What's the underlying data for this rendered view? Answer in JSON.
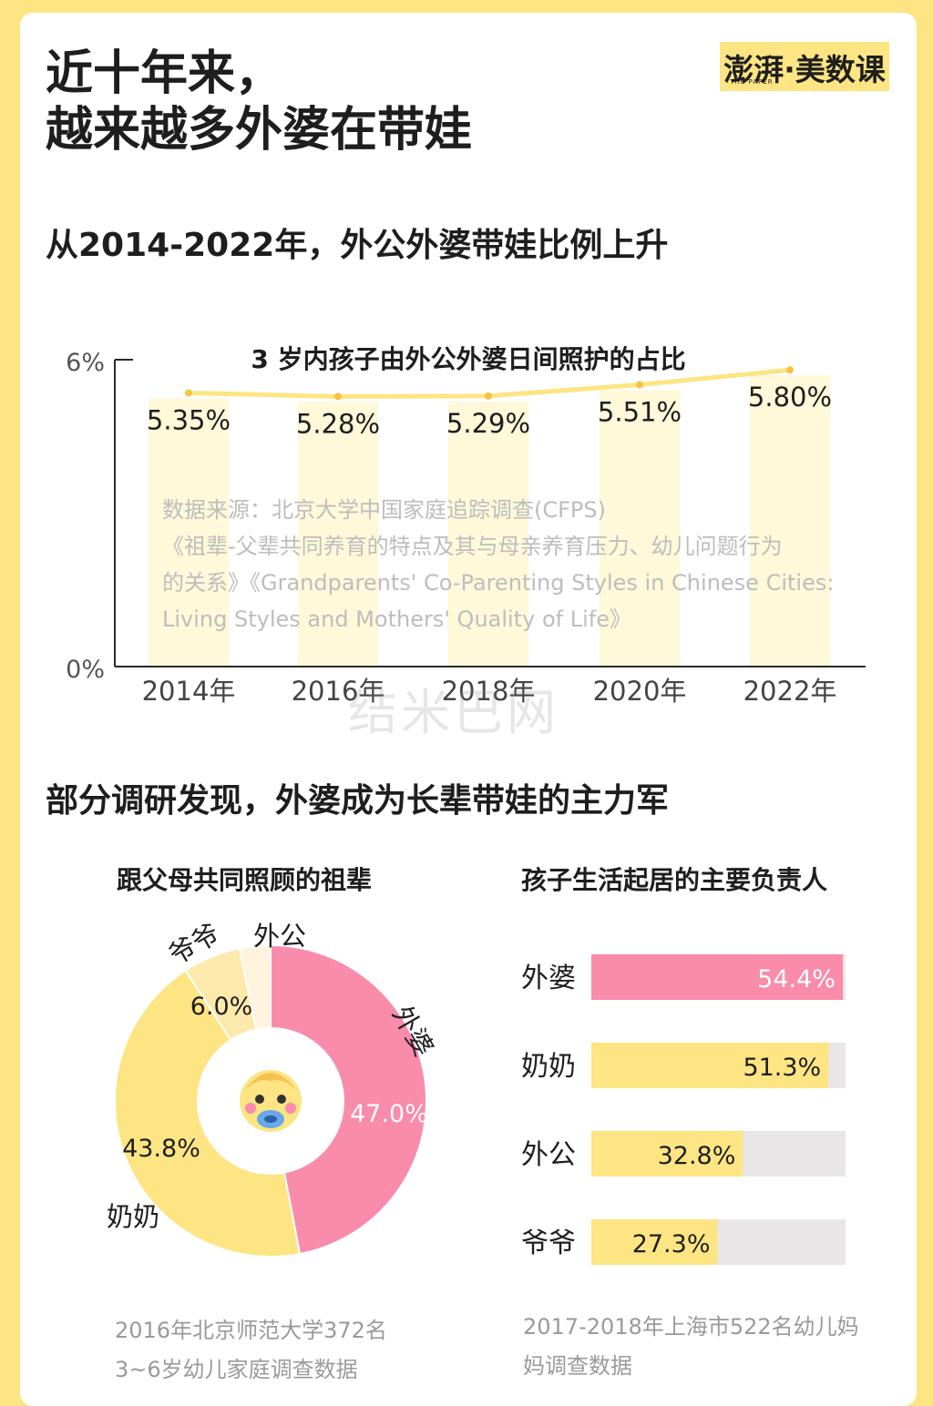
{
  "header": {
    "title_line1": "近十年来，",
    "title_line2": "越来越多外婆在带娃",
    "logo_text": "澎湃·美数课",
    "logo_sub": "THE PAPER"
  },
  "section1": {
    "heading": "从2014-2022年，外公外婆带娃比例上升",
    "source_lines": [
      "数据来源：北京大学中国家庭追踪调查(CFPS)",
      "《祖辈-父辈共同养育的特点及其与母亲养育压力、幼儿问题行为",
      "的关系》《Grandparents' Co-Parenting Styles in Chinese Cities:",
      "Living Styles and Mothers' Quality of Life》"
    ]
  },
  "section2": {
    "heading": "部分调研发现，外婆成为长辈带娃的主力军",
    "donut_note_1": "2016年北京师范大学372名",
    "donut_note_2": "3~6岁幼儿家庭调查数据",
    "bar_note_1": "2017-2018年上海市522名幼儿妈",
    "bar_note_2": "妈调查数据"
  },
  "colors": {
    "background": "#fce582",
    "yellow": "#fce582",
    "pink": "#f98bab",
    "light_bar": "#fff8d9",
    "track": "#e8e6e6"
  },
  "watermark": "结米巴网",
  "chart_data": [
    {
      "type": "line",
      "title": "3 岁内孩子由外公外婆日间照护的占比",
      "categories": [
        "2014年",
        "2016年",
        "2018年",
        "2020年",
        "2022年"
      ],
      "values": [
        5.35,
        5.28,
        5.29,
        5.51,
        5.8
      ],
      "value_labels": [
        "5.35%",
        "5.28%",
        "5.29%",
        "5.51%",
        "5.80%"
      ],
      "ylim": [
        0,
        6
      ],
      "yticks": [
        "0%",
        "6%"
      ],
      "grid": false
    },
    {
      "type": "pie",
      "title": "跟父母共同照顾的祖辈",
      "slices": [
        {
          "name": "外婆",
          "value": 47.0,
          "label": "47.0%",
          "color": "#f98bab"
        },
        {
          "name": "奶奶",
          "value": 43.8,
          "label": "43.8%",
          "color": "#fce582"
        },
        {
          "name": "爷爷",
          "value": 6.0,
          "label": "6.0%",
          "color": "#fde9ab"
        },
        {
          "name": "外公",
          "value": 3.2,
          "label": "",
          "color": "#fff5df"
        }
      ]
    },
    {
      "type": "bar",
      "title": "孩子生活起居的主要负责人",
      "orientation": "horizontal",
      "categories": [
        "外婆",
        "奶奶",
        "外公",
        "爷爷"
      ],
      "values": [
        54.4,
        51.3,
        32.8,
        27.3
      ],
      "value_labels": [
        "54.4%",
        "51.3%",
        "32.8%",
        "27.3%"
      ],
      "colors": [
        "#f98bab",
        "#fce582",
        "#fce582",
        "#fce582"
      ],
      "xlim": [
        0,
        55
      ]
    }
  ]
}
